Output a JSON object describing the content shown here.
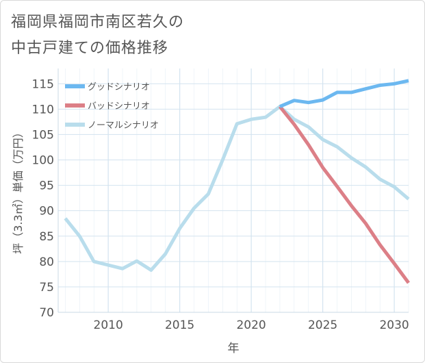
{
  "title_line1": "福岡県福岡市南区若久の",
  "title_line2": "中古戸建ての価格推移",
  "chart_data": {
    "type": "line",
    "xlabel": "年",
    "ylabel": "坪（3.3㎡）単価（万円）",
    "xlim": [
      2006.5,
      2031
    ],
    "ylim": [
      70,
      118
    ],
    "x_ticks": [
      2010,
      2015,
      2020,
      2025,
      2030
    ],
    "y_ticks": [
      70,
      75,
      80,
      85,
      90,
      95,
      100,
      105,
      110,
      115
    ],
    "grid": true,
    "legend_position": "top-left",
    "series": [
      {
        "name": "グッドシナリオ",
        "color": "#6cb8f0",
        "x": [
          2022,
          2023,
          2024,
          2025,
          2026,
          2027,
          2028,
          2029,
          2030,
          2031
        ],
        "values": [
          110.5,
          111.7,
          111.3,
          111.8,
          113.3,
          113.3,
          114.0,
          114.7,
          115.0,
          115.6
        ]
      },
      {
        "name": "バッドシナリオ",
        "color": "#dc7f87",
        "x": [
          2022,
          2023,
          2024,
          2025,
          2026,
          2027,
          2028,
          2029,
          2030,
          2031
        ],
        "values": [
          110.5,
          107.0,
          103.0,
          98.5,
          94.8,
          91.0,
          87.5,
          83.3,
          79.6,
          75.8
        ]
      },
      {
        "name": "ノーマルシナリオ",
        "color": "#b9ddec",
        "x": [
          2007,
          2008,
          2009,
          2010,
          2011,
          2012,
          2013,
          2014,
          2015,
          2016,
          2017,
          2018,
          2019,
          2020,
          2021,
          2022,
          2023,
          2024,
          2025,
          2026,
          2027,
          2028,
          2029,
          2030,
          2031
        ],
        "values": [
          88.5,
          85.0,
          80.0,
          79.3,
          78.6,
          80.1,
          78.3,
          81.5,
          86.5,
          90.5,
          93.3,
          100.0,
          107.1,
          108.0,
          108.4,
          110.5,
          108.0,
          106.5,
          104.0,
          102.6,
          100.4,
          98.6,
          96.2,
          94.7,
          92.3
        ]
      }
    ]
  }
}
